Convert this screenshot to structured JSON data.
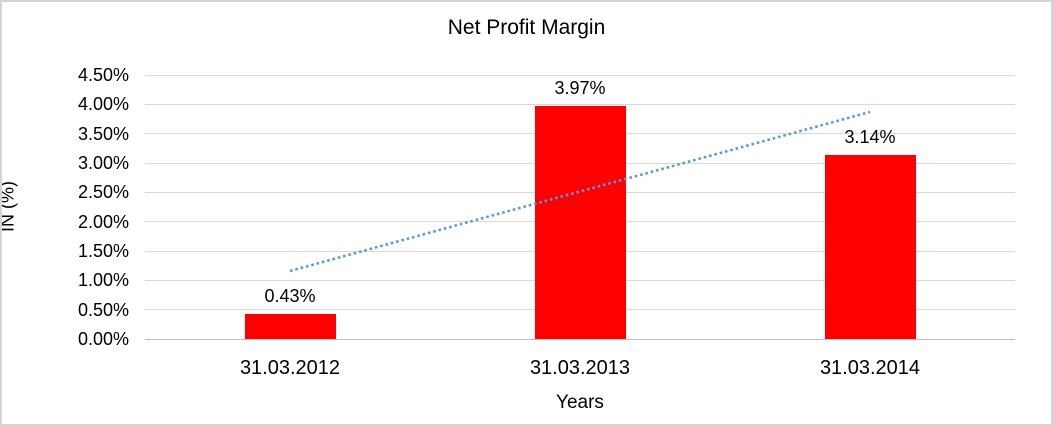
{
  "page": {
    "background": "#ffffff",
    "border_color": "#d5d5d5"
  },
  "chart_data": {
    "type": "bar",
    "title": "Net Profit Margin",
    "xlabel": "Years",
    "ylabel": "IN (%)",
    "categories": [
      "31.03.2012",
      "31.03.2013",
      "31.03.2014"
    ],
    "values": [
      0.43,
      3.97,
      3.14
    ],
    "data_labels": [
      "0.43%",
      "3.97%",
      "3.14%"
    ],
    "yticks": [
      "0.00%",
      "0.50%",
      "1.00%",
      "1.50%",
      "2.00%",
      "2.50%",
      "3.00%",
      "3.50%",
      "4.00%",
      "4.50%"
    ],
    "ylim": [
      0,
      4.5
    ],
    "ytick_step": 0.5,
    "grid": true,
    "legend": "none",
    "bar_color": "#ff0000",
    "gridline_color": "#d9d9d9",
    "axis_line_color": "#bfbfbf",
    "text_color": "#000000",
    "trendline": {
      "type": "linear",
      "style": "dotted",
      "color": "#5b9bd5",
      "start_value": 1.16,
      "end_value": 3.87
    }
  }
}
